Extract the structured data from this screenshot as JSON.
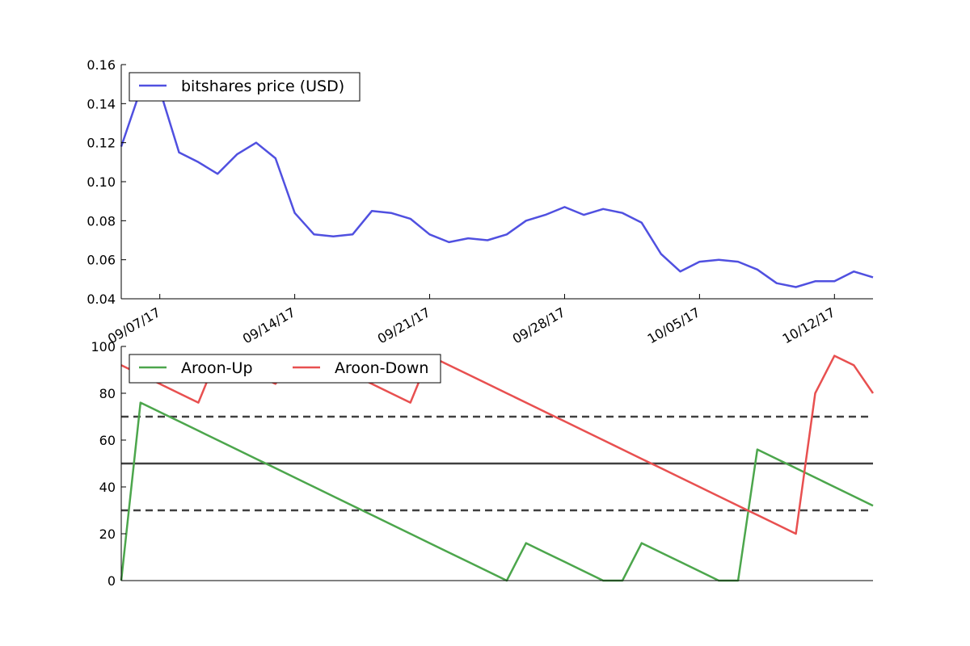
{
  "chart_data": [
    {
      "type": "line",
      "title": "",
      "xlabel": "",
      "ylabel": "",
      "x": [
        "2017-09-05",
        "2017-09-06",
        "2017-09-07",
        "2017-09-08",
        "2017-09-09",
        "2017-09-10",
        "2017-09-11",
        "2017-09-12",
        "2017-09-13",
        "2017-09-14",
        "2017-09-15",
        "2017-09-16",
        "2017-09-17",
        "2017-09-18",
        "2017-09-19",
        "2017-09-20",
        "2017-09-21",
        "2017-09-22",
        "2017-09-23",
        "2017-09-24",
        "2017-09-25",
        "2017-09-26",
        "2017-09-27",
        "2017-09-28",
        "2017-09-29",
        "2017-09-30",
        "2017-10-01",
        "2017-10-02",
        "2017-10-03",
        "2017-10-04",
        "2017-10-05",
        "2017-10-06",
        "2017-10-07",
        "2017-10-08",
        "2017-10-09",
        "2017-10-10",
        "2017-10-11",
        "2017-10-12",
        "2017-10-13",
        "2017-10-14"
      ],
      "series": [
        {
          "name": "bitshares price (USD)",
          "color": "#5050e0",
          "values": [
            0.118,
            0.147,
            0.147,
            0.115,
            0.11,
            0.104,
            0.114,
            0.12,
            0.112,
            0.084,
            0.073,
            0.072,
            0.073,
            0.085,
            0.084,
            0.081,
            0.073,
            0.069,
            0.071,
            0.07,
            0.073,
            0.08,
            0.083,
            0.087,
            0.083,
            0.086,
            0.084,
            0.079,
            0.063,
            0.054,
            0.059,
            0.06,
            0.059,
            0.055,
            0.048,
            0.046,
            0.049,
            0.049,
            0.054,
            0.051
          ]
        }
      ],
      "ylim": [
        0.04,
        0.16
      ],
      "yticks": [
        "0.04",
        "0.06",
        "0.08",
        "0.10",
        "0.12",
        "0.14",
        "0.16"
      ],
      "xticks": [
        "09/07/17",
        "09/14/17",
        "09/21/17",
        "09/28/17",
        "10/05/17",
        "10/12/17"
      ],
      "legend_position": "top-left",
      "grid": false
    },
    {
      "type": "line",
      "title": "",
      "xlabel": "",
      "ylabel": "",
      "x": [
        "2017-09-05",
        "2017-09-06",
        "2017-09-07",
        "2017-09-08",
        "2017-09-09",
        "2017-09-10",
        "2017-09-11",
        "2017-09-12",
        "2017-09-13",
        "2017-09-14",
        "2017-09-15",
        "2017-09-16",
        "2017-09-17",
        "2017-09-18",
        "2017-09-19",
        "2017-09-20",
        "2017-09-21",
        "2017-09-22",
        "2017-09-23",
        "2017-09-24",
        "2017-09-25",
        "2017-09-26",
        "2017-09-27",
        "2017-09-28",
        "2017-09-29",
        "2017-09-30",
        "2017-10-01",
        "2017-10-02",
        "2017-10-03",
        "2017-10-04",
        "2017-10-05",
        "2017-10-06",
        "2017-10-07",
        "2017-10-08",
        "2017-10-09",
        "2017-10-10",
        "2017-10-11",
        "2017-10-12",
        "2017-10-13",
        "2017-10-14"
      ],
      "series": [
        {
          "name": "Aroon-Up",
          "color": "#4ca64c",
          "values": [
            0,
            76,
            72,
            68,
            64,
            60,
            56,
            52,
            48,
            44,
            40,
            36,
            32,
            28,
            24,
            20,
            16,
            12,
            8,
            4,
            0,
            16,
            12,
            8,
            4,
            0,
            0,
            16,
            12,
            8,
            4,
            0,
            0,
            56,
            52,
            48,
            44,
            40,
            36,
            32
          ]
        },
        {
          "name": "Aroon-Down",
          "color": "#e85050",
          "values": [
            92,
            88,
            84,
            80,
            76,
            96,
            92,
            88,
            84,
            96,
            96,
            92,
            88,
            84,
            80,
            76,
            96,
            92,
            88,
            84,
            80,
            76,
            72,
            68,
            64,
            60,
            56,
            52,
            48,
            44,
            40,
            36,
            32,
            28,
            24,
            20,
            80,
            96,
            92,
            80
          ]
        }
      ],
      "hlines": [
        {
          "y": 70,
          "style": "dashed"
        },
        {
          "y": 50,
          "style": "solid"
        },
        {
          "y": 30,
          "style": "dashed"
        }
      ],
      "ylim": [
        0,
        100
      ],
      "yticks": [
        "0",
        "20",
        "40",
        "60",
        "80",
        "100"
      ],
      "legend_position": "top-left",
      "grid": false
    }
  ]
}
